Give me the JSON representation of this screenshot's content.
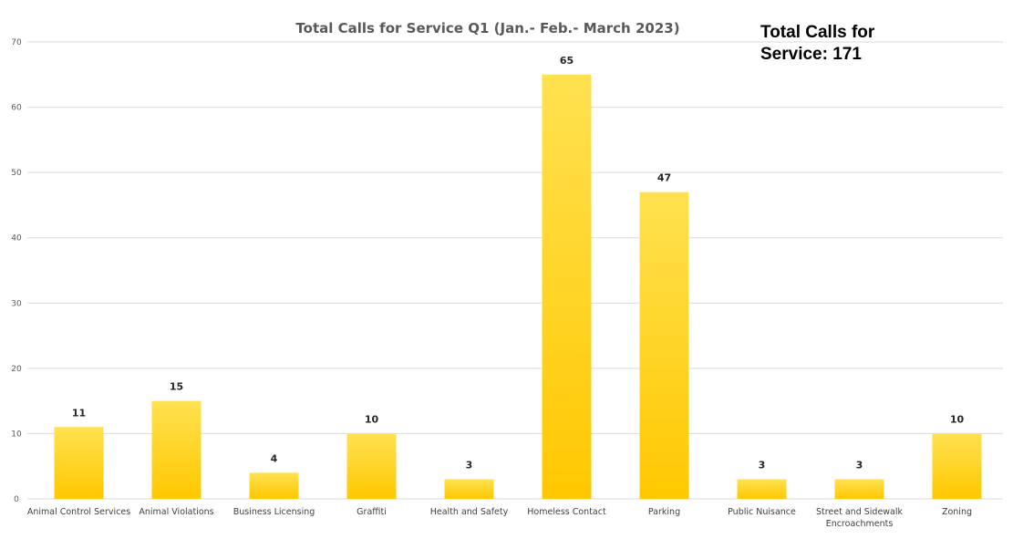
{
  "note": {
    "line1": "Total Calls for",
    "line2": "Service: 171"
  },
  "chart_data": {
    "type": "bar",
    "title": "Total Calls for Service Q1 (Jan.- Feb.- March 2023)",
    "xlabel": "",
    "ylabel": "",
    "ylim": [
      0,
      70
    ],
    "yticks": [
      0,
      10,
      20,
      30,
      40,
      50,
      60,
      70
    ],
    "grid": true,
    "categories": [
      "Animal Control Services",
      "Animal Violations",
      "Business Licensing",
      "Graffiti",
      "Health and Safety",
      "Homeless Contact",
      "Parking",
      "Public Nuisance",
      "Street and Sidewalk Encroachments",
      "Zoning"
    ],
    "values": [
      11,
      15,
      4,
      10,
      3,
      65,
      47,
      3,
      3,
      10
    ],
    "colors": {
      "bar_top": "#FFE150",
      "bar_bottom": "#FFC800",
      "grid": "#D9D9D9"
    }
  }
}
